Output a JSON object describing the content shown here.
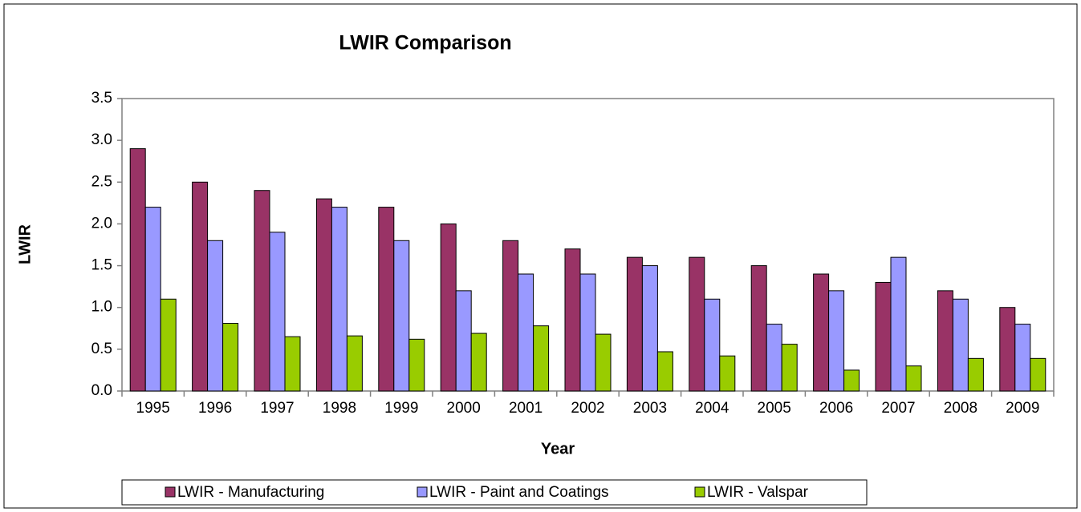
{
  "chart_data": {
    "type": "bar",
    "title": "LWIR Comparison",
    "x_label": "Year",
    "y_label": "LWIR",
    "categories": [
      "1995",
      "1996",
      "1997",
      "1998",
      "1999",
      "2000",
      "2001",
      "2002",
      "2003",
      "2004",
      "2005",
      "2006",
      "2007",
      "2008",
      "2009"
    ],
    "series": [
      {
        "name": "LWIR - Manufacturing",
        "color": "#993366",
        "values": [
          2.9,
          2.5,
          2.4,
          2.3,
          2.2,
          2.0,
          1.8,
          1.7,
          1.6,
          1.6,
          1.5,
          1.4,
          1.3,
          1.2,
          1.0
        ]
      },
      {
        "name": "LWIR - Paint and Coatings",
        "color": "#9999ff",
        "values": [
          2.2,
          1.8,
          1.9,
          2.2,
          1.8,
          1.2,
          1.4,
          1.4,
          1.5,
          1.1,
          0.8,
          1.2,
          1.6,
          1.1,
          0.8
        ]
      },
      {
        "name": "LWIR - Valspar",
        "color": "#99cc00",
        "values": [
          1.1,
          0.81,
          0.65,
          0.66,
          0.62,
          0.69,
          0.78,
          0.68,
          0.47,
          0.42,
          0.56,
          0.25,
          0.3,
          0.39,
          0.39
        ]
      }
    ],
    "ylim": [
      0,
      3.5
    ],
    "yticks": [
      {
        "value": 0,
        "label": "0.0"
      },
      0.5,
      {
        "value": 1,
        "label": "1.0"
      },
      1.5,
      {
        "value": 2,
        "label": "2.0"
      },
      2.5,
      {
        "value": 3,
        "label": "3.0"
      },
      3.5
    ],
    "grid": false,
    "legend": "bottom"
  }
}
